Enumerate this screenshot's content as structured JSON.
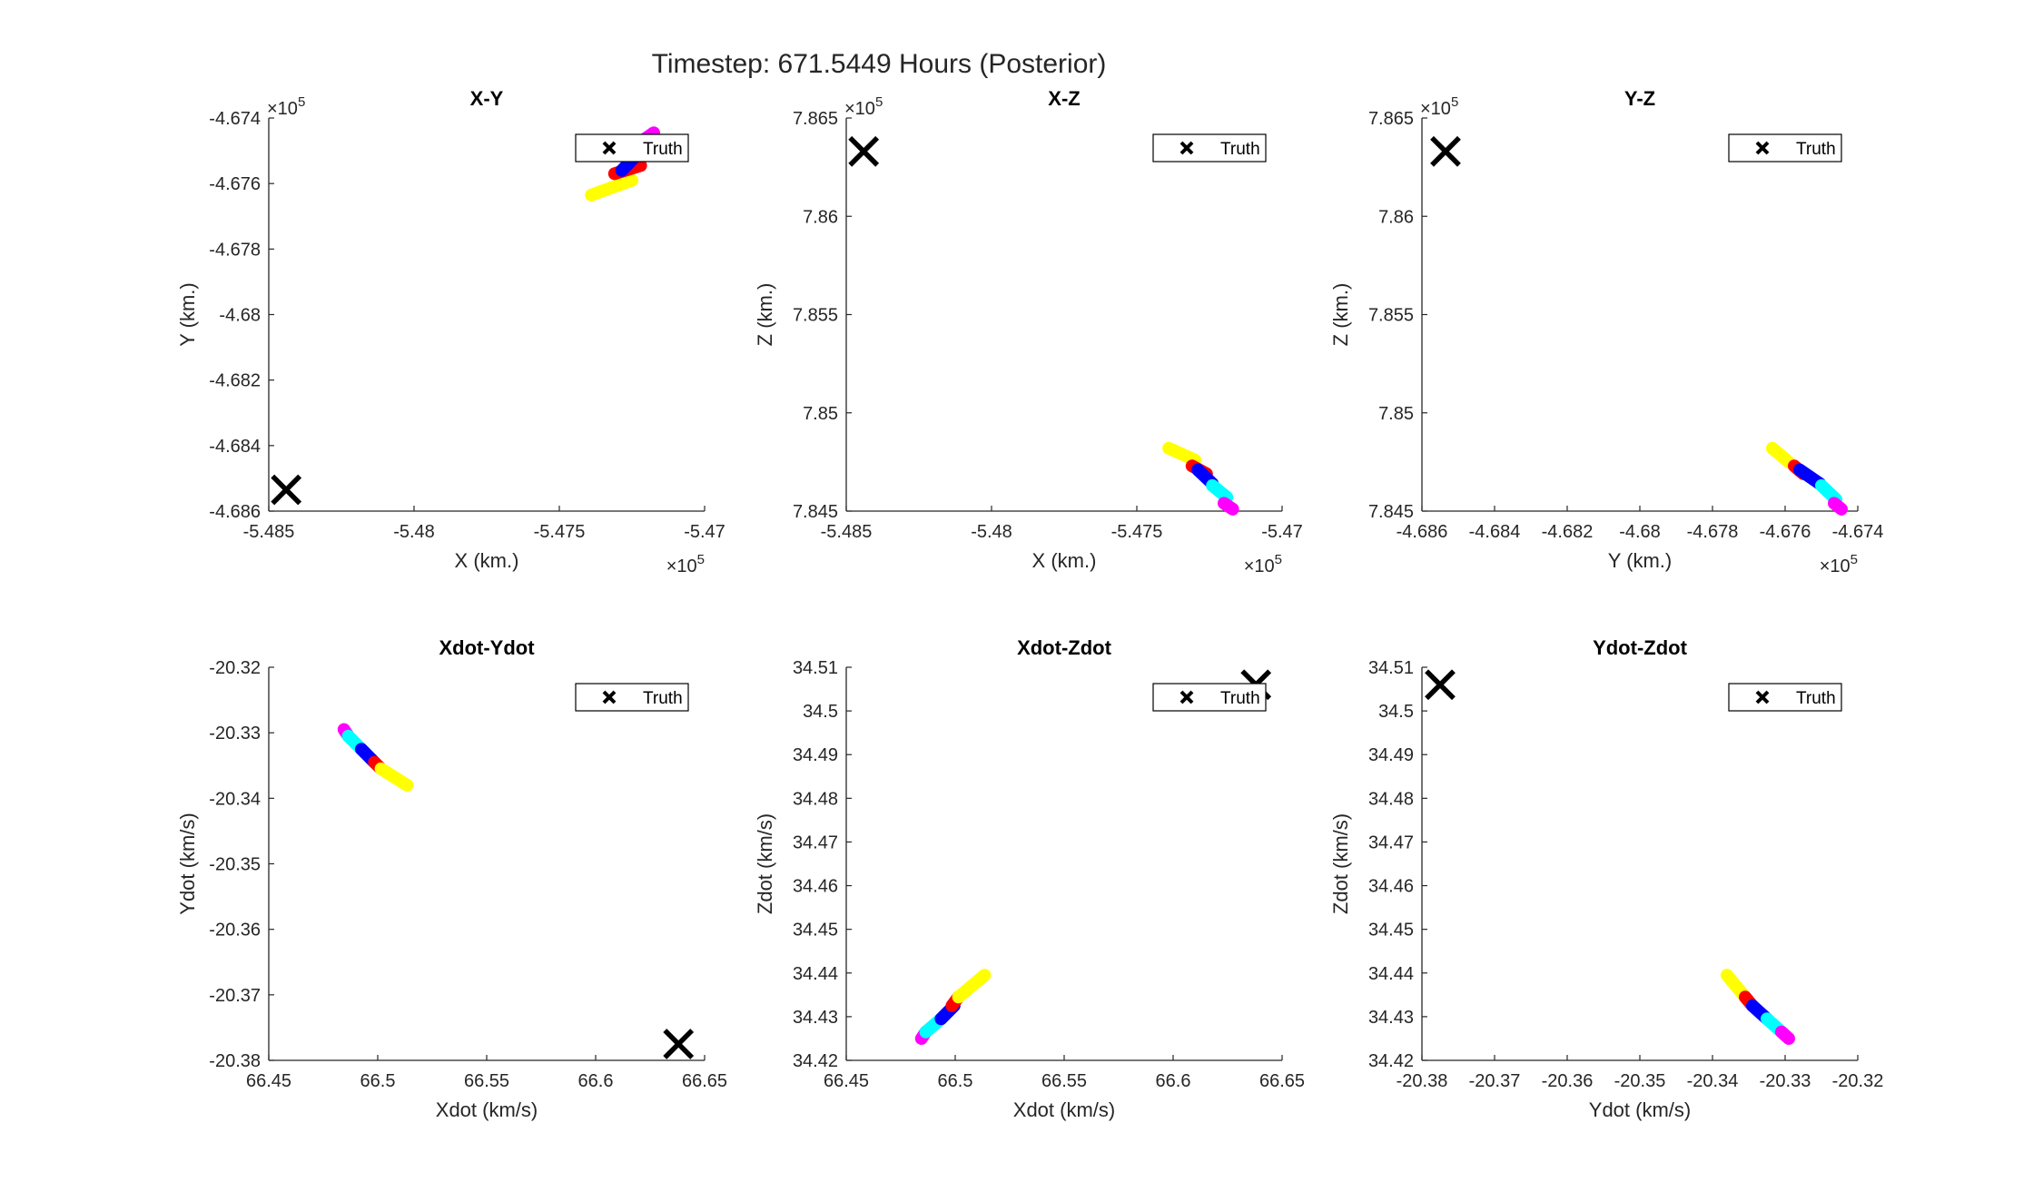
{
  "figure": {
    "title": "Timestep: 671.5449 Hours (Posterior)"
  },
  "colors": {
    "axis": "#262626",
    "truth": "#000000",
    "magenta": "#ff00ff",
    "blue": "#0000ff",
    "red": "#ff0000",
    "cyan": "#00ffff",
    "yellow": "#ffff00"
  },
  "chart_data": [
    {
      "id": "xy",
      "type": "scatter",
      "title": "X-Y",
      "xlabel": "X (km.)",
      "ylabel": "Y (km.)",
      "xlim": [
        -548500,
        -547000
      ],
      "ylim": [
        -468600,
        -467400
      ],
      "xticks": [
        -548500,
        -548000,
        -547500,
        -547000
      ],
      "xticklabels": [
        "-5.485",
        "-5.48",
        "-5.475",
        "-5.47"
      ],
      "yticks": [
        -468600,
        -468400,
        -468200,
        -468000,
        -467800,
        -467600,
        -467400
      ],
      "yticklabels": [
        "-4.686",
        "-4.684",
        "-4.682",
        "-4.68",
        "-4.678",
        "-4.676",
        "-4.674"
      ],
      "x_exponent": "×10^5",
      "y_exponent": "×10^5",
      "legend": {
        "entries": [
          "Truth"
        ],
        "location": "top-right"
      },
      "truth": {
        "x": -548440,
        "y": -468535
      },
      "cloud": [
        {
          "color": "yellow",
          "x": [
            -547390,
            -547250
          ],
          "y": [
            -467635,
            -467590
          ]
        },
        {
          "color": "red",
          "x": [
            -547310,
            -547220
          ],
          "y": [
            -467570,
            -467545
          ]
        },
        {
          "color": "blue",
          "x": [
            -547285,
            -547225
          ],
          "y": [
            -467560,
            -467505
          ]
        },
        {
          "color": "cyan",
          "x": [
            -547240,
            -547205
          ],
          "y": [
            -467495,
            -467475
          ]
        },
        {
          "color": "magenta",
          "x": [
            -547215,
            -547175
          ],
          "y": [
            -467470,
            -467445
          ]
        }
      ]
    },
    {
      "id": "xz",
      "type": "scatter",
      "title": "X-Z",
      "xlabel": "X (km.)",
      "ylabel": "Z (km.)",
      "xlim": [
        -548500,
        -547000
      ],
      "ylim": [
        784500,
        786500
      ],
      "xticks": [
        -548500,
        -548000,
        -547500,
        -547000
      ],
      "xticklabels": [
        "-5.485",
        "-5.48",
        "-5.475",
        "-5.47"
      ],
      "yticks": [
        784500,
        785000,
        785500,
        786000,
        786500
      ],
      "yticklabels": [
        "7.845",
        "7.85",
        "7.855",
        "7.86",
        "7.865"
      ],
      "x_exponent": "×10^5",
      "y_exponent": "×10^5",
      "legend": {
        "entries": [
          "Truth"
        ],
        "location": "top-right"
      },
      "truth": {
        "x": -548440,
        "y": 786330
      },
      "cloud": [
        {
          "color": "yellow",
          "x": [
            -547390,
            -547300
          ],
          "y": [
            784820,
            784760
          ]
        },
        {
          "color": "red",
          "x": [
            -547310,
            -547260
          ],
          "y": [
            784730,
            784690
          ]
        },
        {
          "color": "blue",
          "x": [
            -547290,
            -547240
          ],
          "y": [
            784710,
            784640
          ]
        },
        {
          "color": "cyan",
          "x": [
            -547240,
            -547190
          ],
          "y": [
            784630,
            784570
          ]
        },
        {
          "color": "magenta",
          "x": [
            -547200,
            -547170
          ],
          "y": [
            784540,
            784510
          ]
        }
      ]
    },
    {
      "id": "yz",
      "type": "scatter",
      "title": "Y-Z",
      "xlabel": "Y (km.)",
      "ylabel": "Z (km.)",
      "xlim": [
        -468600,
        -467400
      ],
      "ylim": [
        784500,
        786500
      ],
      "xticks": [
        -468600,
        -468400,
        -468200,
        -468000,
        -467800,
        -467600,
        -467400
      ],
      "xticklabels": [
        "-4.686",
        "-4.684",
        "-4.682",
        "-4.68",
        "-4.678",
        "-4.676",
        "-4.674"
      ],
      "yticks": [
        784500,
        785000,
        785500,
        786000,
        786500
      ],
      "yticklabels": [
        "7.845",
        "7.85",
        "7.855",
        "7.86",
        "7.865"
      ],
      "x_exponent": "×10^5",
      "y_exponent": "×10^5",
      "legend": {
        "entries": [
          "Truth"
        ],
        "location": "top-right"
      },
      "truth": {
        "x": -468535,
        "y": 786330
      },
      "cloud": [
        {
          "color": "yellow",
          "x": [
            -467635,
            -467590
          ],
          "y": [
            784820,
            784750
          ]
        },
        {
          "color": "red",
          "x": [
            -467575,
            -467550
          ],
          "y": [
            784730,
            784690
          ]
        },
        {
          "color": "blue",
          "x": [
            -467560,
            -467505
          ],
          "y": [
            784710,
            784640
          ]
        },
        {
          "color": "cyan",
          "x": [
            -467500,
            -467460
          ],
          "y": [
            784630,
            784560
          ]
        },
        {
          "color": "magenta",
          "x": [
            -467465,
            -467445
          ],
          "y": [
            784540,
            784510
          ]
        }
      ]
    },
    {
      "id": "xdot-ydot",
      "type": "scatter",
      "title": "Xdot-Ydot",
      "xlabel": "Xdot (km/s)",
      "ylabel": "Ydot (km/s)",
      "xlim": [
        66.45,
        66.65
      ],
      "ylim": [
        -20.38,
        -20.32
      ],
      "xticks": [
        66.45,
        66.5,
        66.55,
        66.6,
        66.65
      ],
      "xticklabels": [
        "66.45",
        "66.5",
        "66.55",
        "66.6",
        "66.65"
      ],
      "yticks": [
        -20.38,
        -20.37,
        -20.36,
        -20.35,
        -20.34,
        -20.33,
        -20.32
      ],
      "yticklabels": [
        "-20.38",
        "-20.37",
        "-20.36",
        "-20.35",
        "-20.34",
        "-20.33",
        "-20.32"
      ],
      "legend": {
        "entries": [
          "Truth"
        ],
        "location": "top-right"
      },
      "truth": {
        "x": 66.638,
        "y": -20.3775
      },
      "cloud": [
        {
          "color": "magenta",
          "x": [
            66.4845,
            66.4865
          ],
          "y": [
            -20.3295,
            -20.3305
          ]
        },
        {
          "color": "cyan",
          "x": [
            66.4865,
            66.4925
          ],
          "y": [
            -20.3305,
            -20.3325
          ]
        },
        {
          "color": "blue",
          "x": [
            66.4925,
            66.4985
          ],
          "y": [
            -20.3325,
            -20.3345
          ]
        },
        {
          "color": "red",
          "x": [
            66.4985,
            66.5015
          ],
          "y": [
            -20.3345,
            -20.3355
          ]
        },
        {
          "color": "yellow",
          "x": [
            66.5015,
            66.5135
          ],
          "y": [
            -20.3355,
            -20.338
          ]
        }
      ]
    },
    {
      "id": "xdot-zdot",
      "type": "scatter",
      "title": "Xdot-Zdot",
      "xlabel": "Xdot (km/s)",
      "ylabel": "Zdot (km/s)",
      "xlim": [
        66.45,
        66.65
      ],
      "ylim": [
        34.42,
        34.51
      ],
      "xticks": [
        66.45,
        66.5,
        66.55,
        66.6,
        66.65
      ],
      "xticklabels": [
        "66.45",
        "66.5",
        "66.55",
        "66.6",
        "66.65"
      ],
      "yticks": [
        34.42,
        34.43,
        34.44,
        34.45,
        34.46,
        34.47,
        34.48,
        34.49,
        34.5,
        34.51
      ],
      "yticklabels": [
        "34.42",
        "34.43",
        "34.44",
        "34.45",
        "34.46",
        "34.47",
        "34.48",
        "34.49",
        "34.5",
        "34.51"
      ],
      "legend": {
        "entries": [
          "Truth"
        ],
        "location": "top-right"
      },
      "truth": {
        "x": 66.638,
        "y": 34.506
      },
      "cloud": [
        {
          "color": "magenta",
          "x": [
            66.4845,
            66.4865
          ],
          "y": [
            34.425,
            34.4265
          ]
        },
        {
          "color": "cyan",
          "x": [
            66.4865,
            66.4935
          ],
          "y": [
            34.4265,
            34.4295
          ]
        },
        {
          "color": "blue",
          "x": [
            66.4935,
            66.4995
          ],
          "y": [
            34.4295,
            34.4325
          ]
        },
        {
          "color": "red",
          "x": [
            66.4985,
            66.5015
          ],
          "y": [
            34.4325,
            34.4345
          ]
        },
        {
          "color": "yellow",
          "x": [
            66.5015,
            66.5135
          ],
          "y": [
            34.4345,
            34.4395
          ]
        }
      ]
    },
    {
      "id": "ydot-zdot",
      "type": "scatter",
      "title": "Ydot-Zdot",
      "xlabel": "Ydot (km/s)",
      "ylabel": "Zdot (km/s)",
      "xlim": [
        -20.38,
        -20.32
      ],
      "ylim": [
        34.42,
        34.51
      ],
      "xticks": [
        -20.38,
        -20.37,
        -20.36,
        -20.35,
        -20.34,
        -20.33,
        -20.32
      ],
      "xticklabels": [
        "-20.38",
        "-20.37",
        "-20.36",
        "-20.35",
        "-20.34",
        "-20.33",
        "-20.32"
      ],
      "yticks": [
        34.42,
        34.43,
        34.44,
        34.45,
        34.46,
        34.47,
        34.48,
        34.49,
        34.5,
        34.51
      ],
      "yticklabels": [
        "34.42",
        "34.43",
        "34.44",
        "34.45",
        "34.46",
        "34.47",
        "34.48",
        "34.49",
        "34.5",
        "34.51"
      ],
      "legend": {
        "entries": [
          "Truth"
        ],
        "location": "top-right"
      },
      "truth": {
        "x": -20.3775,
        "y": 34.506
      },
      "cloud": [
        {
          "color": "yellow",
          "x": [
            -20.338,
            -20.3355
          ],
          "y": [
            34.4395,
            34.4345
          ]
        },
        {
          "color": "red",
          "x": [
            -20.3355,
            -20.3345
          ],
          "y": [
            34.4345,
            34.4325
          ]
        },
        {
          "color": "blue",
          "x": [
            -20.3345,
            -20.3325
          ],
          "y": [
            34.4325,
            34.4295
          ]
        },
        {
          "color": "cyan",
          "x": [
            -20.3325,
            -20.3305
          ],
          "y": [
            34.4295,
            34.4265
          ]
        },
        {
          "color": "magenta",
          "x": [
            -20.3305,
            -20.3295
          ],
          "y": [
            34.4265,
            34.425
          ]
        }
      ]
    }
  ]
}
